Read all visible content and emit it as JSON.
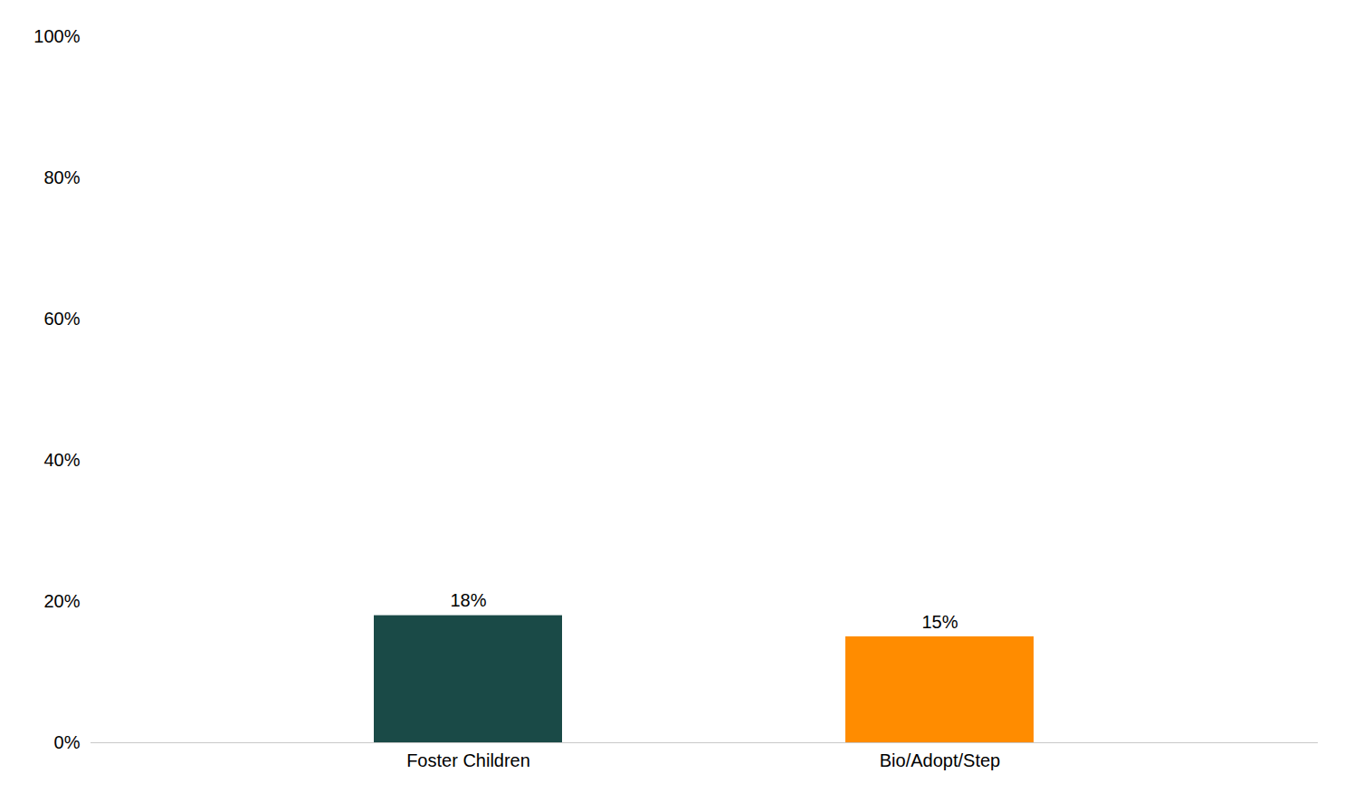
{
  "chart_data": {
    "type": "bar",
    "categories": [
      "Foster Children",
      "Bio/Adopt/Step"
    ],
    "values": [
      18,
      15
    ],
    "value_labels": [
      "18%",
      "15%"
    ],
    "colors": [
      "#1a4a47",
      "#ff8c00"
    ],
    "ylim": [
      0,
      100
    ],
    "yticks": [
      {
        "value": 0,
        "label": "0%"
      },
      {
        "value": 20,
        "label": "20%"
      },
      {
        "value": 40,
        "label": "40%"
      },
      {
        "value": 60,
        "label": "60%"
      },
      {
        "value": 80,
        "label": "80%"
      },
      {
        "value": 100,
        "label": "100%"
      }
    ],
    "grid": false,
    "data_labels": true
  }
}
